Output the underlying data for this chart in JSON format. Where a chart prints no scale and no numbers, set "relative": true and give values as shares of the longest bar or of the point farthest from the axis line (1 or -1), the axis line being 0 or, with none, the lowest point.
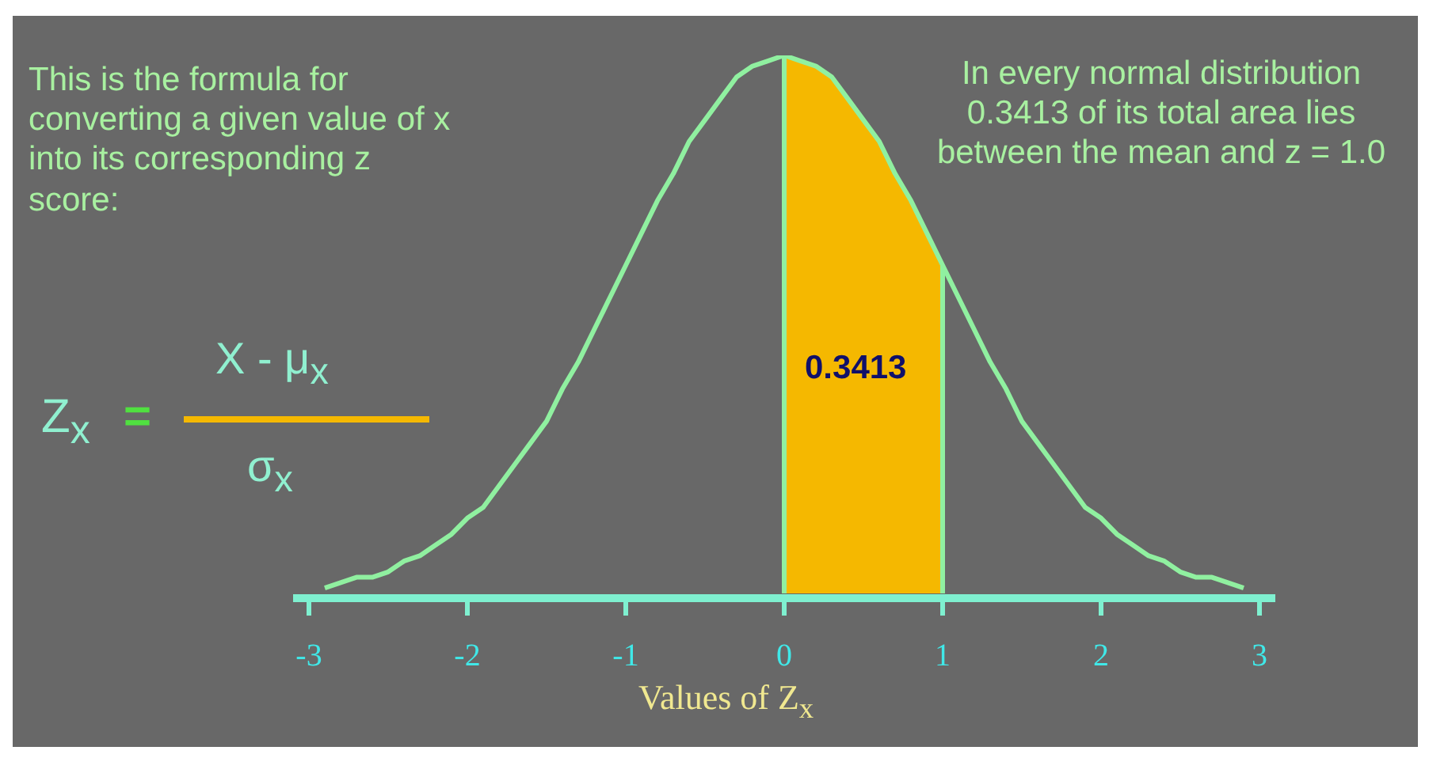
{
  "chart_data": {
    "type": "line",
    "relative": true,
    "xlabel": "Values of Z$_{x}$",
    "x": [
      -2.9,
      -2.8,
      -2.7,
      -2.6,
      -2.5,
      -2.4,
      -2.3,
      -2.2,
      -2.1,
      -2.0,
      -1.9,
      -1.8,
      -1.7,
      -1.6,
      -1.5,
      -1.4,
      -1.3,
      -1.2,
      -1.1,
      -1.0,
      -0.9,
      -0.8,
      -0.7,
      -0.6,
      -0.5,
      -0.4,
      -0.3,
      -0.2,
      -0.1,
      0,
      0.1,
      0.2,
      0.3,
      0.4,
      0.5,
      0.6,
      0.7,
      0.8,
      0.9,
      1.0,
      1.1,
      1.2,
      1.3,
      1.4,
      1.5,
      1.6,
      1.7,
      1.8,
      1.9,
      2.0,
      2.1,
      2.2,
      2.3,
      2.4,
      2.5,
      2.6,
      2.7,
      2.8,
      2.9
    ],
    "series": [
      {
        "type": "area",
        "color": "#f5b800",
        "x": [
          0,
          0.1,
          0.2,
          0.3,
          0.4,
          0.5,
          0.6,
          0.7,
          0.8,
          0.9,
          1.0
        ],
        "values": [
          1,
          0.99,
          0.98,
          0.96,
          0.92,
          0.88,
          0.84,
          0.78,
          0.73,
          0.67,
          0.61
        ]
      },
      {
        "color": "#90f0a0",
        "values": [
          0.01,
          0.02,
          0.03,
          0.03,
          0.04,
          0.06,
          0.07,
          0.09,
          0.11,
          0.14,
          0.16,
          0.2,
          0.24,
          0.28,
          0.32,
          0.38,
          0.43,
          0.49,
          0.55,
          0.61,
          0.67,
          0.73,
          0.78,
          0.84,
          0.88,
          0.92,
          0.96,
          0.98,
          0.99,
          1,
          0.99,
          0.98,
          0.96,
          0.92,
          0.88,
          0.84,
          0.78,
          0.73,
          0.67,
          0.61,
          0.55,
          0.49,
          0.43,
          0.38,
          0.32,
          0.28,
          0.24,
          0.2,
          0.16,
          0.14,
          0.11,
          0.09,
          0.07,
          0.06,
          0.04,
          0.03,
          0.03,
          0.02,
          0.01
        ]
      }
    ],
    "xlim": [
      -3.1,
      3.1
    ],
    "xticks": [
      -3,
      -2,
      -1,
      0,
      1,
      2,
      3
    ],
    "ref_lines": [
      {
        "axis": "x",
        "value": 0,
        "color": "#90f0a0"
      },
      {
        "axis": "x",
        "value": 1,
        "color": "#90f0a0"
      }
    ],
    "annotations": [
      "0.3413",
      "This is the formula for converting a given value of x into its corresponding z score:",
      "In every normal distribution 0.3413 of its total area lies between the mean and z = 1.0",
      "Z$_{x}$",
      "=",
      "X - μ$_{x}$",
      "σ$_{x}$"
    ],
    "grid": false,
    "legend": false,
    "marker": "none",
    "line_style": "solid"
  }
}
